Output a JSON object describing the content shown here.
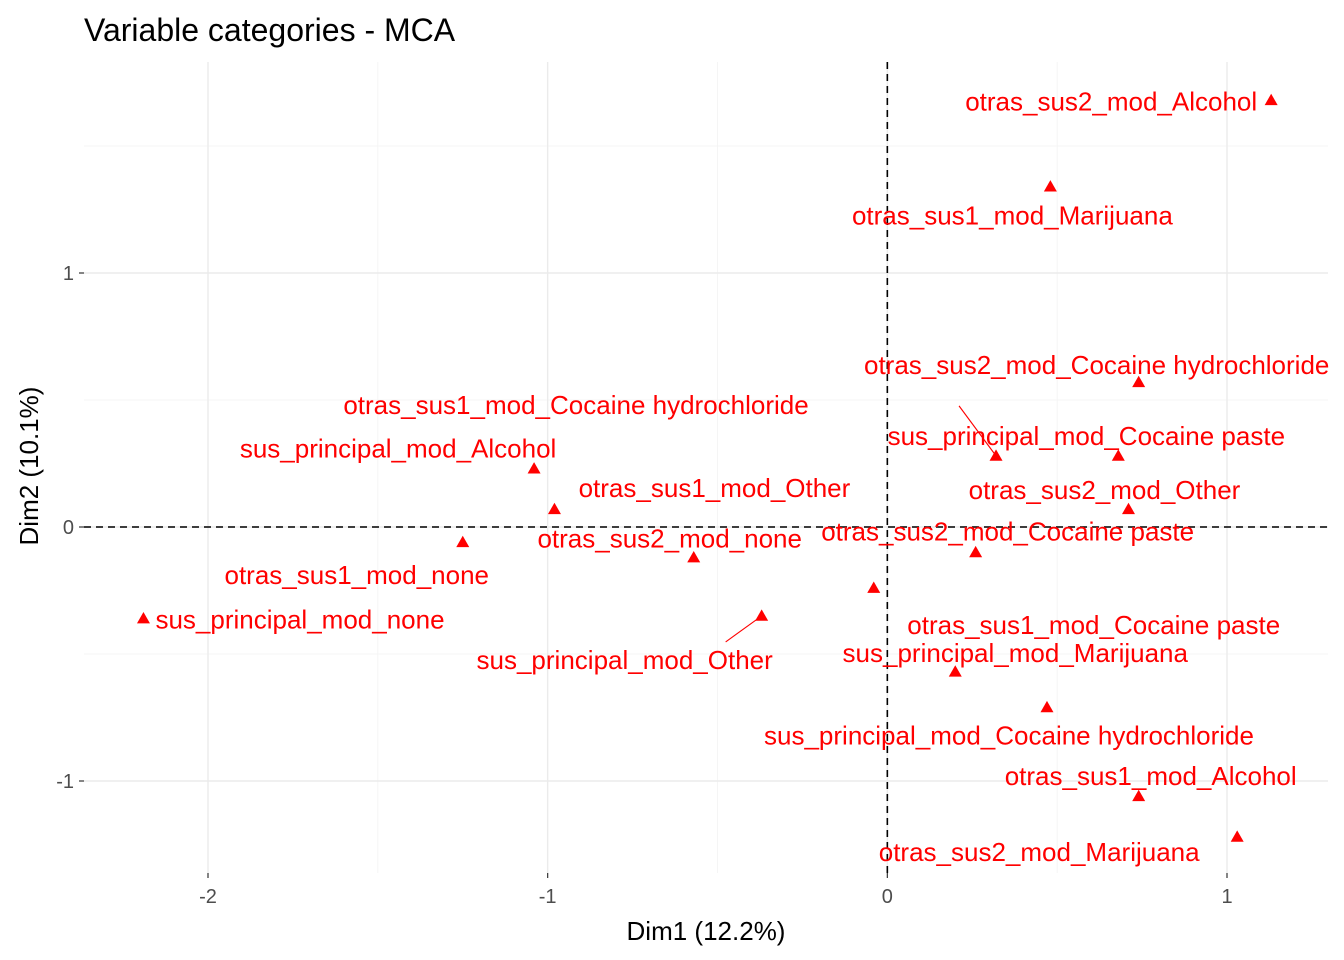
{
  "chart_data": {
    "type": "scatter",
    "title": "Variable categories - MCA",
    "xlabel": "Dim1 (12.2%)",
    "ylabel": "Dim2 (10.1%)",
    "xlim": [
      -2.38,
      1.32
    ],
    "ylim": [
      -1.36,
      1.82
    ],
    "xticks": [
      -2,
      -1,
      0,
      1
    ],
    "xtick_labels": [
      "-2",
      "-1",
      "0",
      "1"
    ],
    "yticks": [
      -1,
      0,
      1
    ],
    "ytick_labels": [
      "-1",
      "0",
      "1"
    ],
    "xminor": [
      -1.5,
      -0.5,
      0.5
    ],
    "yminor": [
      -0.5,
      0.5,
      1.5
    ],
    "grid": true,
    "reference_lines": {
      "x": 0,
      "y": 0,
      "style": "dashed"
    },
    "point_color": "#FF0000",
    "marker": "triangle",
    "points": [
      {
        "label": "otras_sus2_mod_Alcohol",
        "x": 1.13,
        "y": 1.68
      },
      {
        "label": "otras_sus1_mod_Marijuana",
        "x": 0.48,
        "y": 1.34
      },
      {
        "label": "otras_sus2_mod_Cocaine hydrochloride",
        "x": 0.74,
        "y": 0.57
      },
      {
        "label": "otras_sus1_mod_Cocaine hydrochloride",
        "x": 0.32,
        "y": 0.28
      },
      {
        "label": "sus_principal_mod_Cocaine paste",
        "x": 0.68,
        "y": 0.28
      },
      {
        "label": "sus_principal_mod_Alcohol",
        "x": -1.04,
        "y": 0.23
      },
      {
        "label": "otras_sus2_mod_Other",
        "x": 0.71,
        "y": 0.07
      },
      {
        "label": "otras_sus1_mod_Other",
        "x": -0.98,
        "y": 0.07
      },
      {
        "label": "otras_sus2_mod_none",
        "x": -0.57,
        "y": -0.12
      },
      {
        "label": "otras_sus2_mod_Cocaine paste",
        "x": 0.26,
        "y": -0.1
      },
      {
        "label": "otras_sus1_mod_none",
        "x": -1.25,
        "y": -0.06
      },
      {
        "label": "sus_principal_mod_none",
        "x": -2.19,
        "y": -0.36
      },
      {
        "label": "sus_principal_mod_Other",
        "x": -0.37,
        "y": -0.35
      },
      {
        "label": "otras_sus1_mod_Cocaine paste",
        "x": -0.04,
        "y": -0.24
      },
      {
        "label": "sus_principal_mod_Marijuana",
        "x": 0.2,
        "y": -0.57
      },
      {
        "label": "sus_principal_mod_Cocaine hydrochloride",
        "x": 0.47,
        "y": -0.71
      },
      {
        "label": "otras_sus1_mod_Alcohol",
        "x": 0.74,
        "y": -1.06
      },
      {
        "label": "otras_sus2_mod_Marijuana",
        "x": 1.03,
        "y": -1.22
      }
    ]
  }
}
